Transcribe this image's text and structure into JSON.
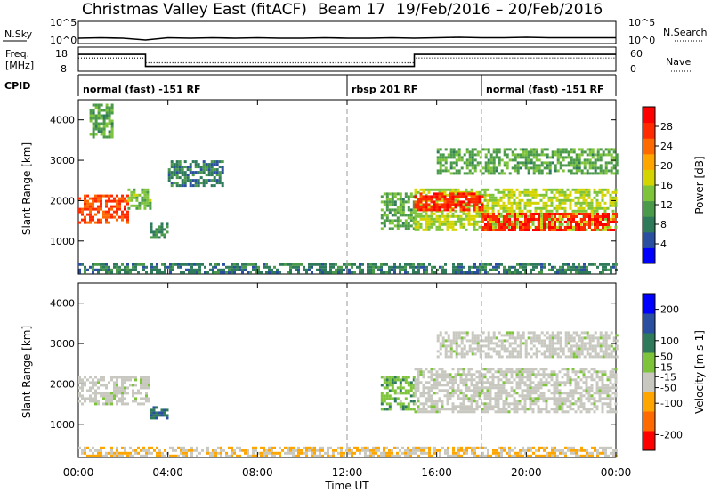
{
  "header": {
    "title": "Christmas Valley East (fitACF)",
    "beam": "Beam 17",
    "dates": "19/Feb/2016 – 20/Feb/2016"
  },
  "strip_labels": {
    "nsky": "N.Sky",
    "nsky_ticks": [
      "10^5",
      "10^0"
    ],
    "nsearch": "N.Search",
    "nsearch_ticks": [
      "10^5",
      "10^0"
    ],
    "freq": "Freq.",
    "freq_unit": "[MHz]",
    "freq_ticks": [
      "18",
      "8"
    ],
    "nave": "Nave",
    "nave_ticks": [
      "60",
      "0"
    ],
    "cpid": "CPID"
  },
  "cpid_segments": [
    {
      "label": "normal (fast) -151 RF",
      "start_h": 0,
      "end_h": 12
    },
    {
      "label": "rbsp 201 RF",
      "start_h": 12,
      "end_h": 18
    },
    {
      "label": "normal (fast) -151 RF",
      "start_h": 18,
      "end_h": 24
    }
  ],
  "x_axis": {
    "label": "Time UT",
    "ticks": [
      "00:00",
      "04:00",
      "08:00",
      "12:00",
      "16:00",
      "20:00",
      "00:00"
    ],
    "tick_hours": [
      0,
      4,
      8,
      12,
      16,
      20,
      24
    ]
  },
  "colors": {
    "power_scale": [
      "#0000ff",
      "#2a4fa0",
      "#2f7a5a",
      "#4a9a4a",
      "#7ec43a",
      "#d4d400",
      "#ffa500",
      "#ff6a00",
      "#ff2a00",
      "#ff0000"
    ],
    "velocity_scale": [
      "#ff0000",
      "#ff6a00",
      "#ffa500",
      "#c8c8c0",
      "#7ec43a",
      "#2f7a5a",
      "#2a4fa0",
      "#0000ff"
    ],
    "ground_scatter": "#c8c8c0"
  },
  "chart_data": [
    {
      "type": "line",
      "title": "N.Sky / N.Search",
      "x_unit": "hours UT",
      "ylim_log": [
        0,
        5
      ],
      "series": [
        {
          "name": "N.Sky",
          "x": [
            0,
            1,
            2,
            3,
            4,
            5,
            6,
            7,
            8,
            9,
            10,
            11,
            12,
            13,
            14,
            15,
            16,
            17,
            18,
            19,
            20,
            21,
            22,
            23,
            24
          ],
          "values": [
            1.2,
            1.3,
            1.2,
            0.8,
            1.3,
            1.2,
            1.3,
            1.2,
            1.3,
            1.2,
            1.2,
            1.3,
            1.2,
            1.2,
            1.3,
            1.2,
            1.3,
            1.4,
            1.3,
            1.3,
            1.4,
            1.3,
            1.3,
            1.3,
            1.3
          ]
        }
      ]
    },
    {
      "type": "line",
      "title": "Freq. / Nave",
      "ylim": [
        8,
        18
      ],
      "series": [
        {
          "name": "Freq.",
          "x": [
            0,
            3,
            3,
            15,
            15,
            24
          ],
          "values": [
            15,
            15,
            10,
            10,
            15,
            15
          ]
        },
        {
          "name": "Nave",
          "x": [
            0,
            3,
            3,
            15,
            15,
            24
          ],
          "values": [
            13.5,
            13.5,
            11.5,
            11.5,
            13.5,
            13.5
          ]
        }
      ]
    },
    {
      "type": "heatmap",
      "title": "Power",
      "xlabel": "Time UT",
      "ylabel": "Slant Range [km]",
      "xlim": [
        0,
        24
      ],
      "ylim": [
        180,
        4500
      ],
      "yticks": [
        1000,
        2000,
        3000,
        4000
      ],
      "colorbar": {
        "label": "Power [dB]",
        "ticks": [
          4,
          8,
          12,
          16,
          20,
          24,
          28
        ],
        "range": [
          0,
          32
        ]
      },
      "regions": [
        {
          "t0": 0.0,
          "t1": 2.2,
          "r0": 1450,
          "r1": 2150,
          "value": 26
        },
        {
          "t0": 2.2,
          "t1": 3.2,
          "r0": 1800,
          "r1": 2300,
          "value": 14
        },
        {
          "t0": 3.2,
          "t1": 4.0,
          "r0": 1100,
          "r1": 1450,
          "value": 10
        },
        {
          "t0": 4.0,
          "t1": 6.5,
          "r0": 2400,
          "r1": 3000,
          "value": 8
        },
        {
          "t0": 0.5,
          "t1": 1.5,
          "r0": 3600,
          "r1": 4400,
          "value": 12
        },
        {
          "t0": 0.0,
          "t1": 24.0,
          "r0": 200,
          "r1": 450,
          "value": 8
        },
        {
          "t0": 13.5,
          "t1": 15.0,
          "r0": 1300,
          "r1": 2200,
          "value": 12
        },
        {
          "t0": 15.0,
          "t1": 24.0,
          "r0": 1250,
          "r1": 2300,
          "value": 16
        },
        {
          "t0": 15.0,
          "t1": 18.0,
          "r0": 1750,
          "r1": 2200,
          "value": 28
        },
        {
          "t0": 18.0,
          "t1": 24.0,
          "r0": 1300,
          "r1": 1700,
          "value": 28
        },
        {
          "t0": 16.0,
          "t1": 24.0,
          "r0": 2700,
          "r1": 3300,
          "value": 12
        }
      ]
    },
    {
      "type": "heatmap",
      "title": "Velocity",
      "xlabel": "Time UT",
      "ylabel": "Slant Range [km]",
      "xlim": [
        0,
        24
      ],
      "ylim": [
        180,
        4500
      ],
      "yticks": [
        1000,
        2000,
        3000,
        4000
      ],
      "colorbar": {
        "label": "Velocity [m s-1]",
        "ticks": [
          -200,
          -100,
          -50,
          -15,
          15,
          50,
          100,
          200
        ],
        "range": [
          -250,
          250
        ]
      },
      "regions": [
        {
          "t0": 0.0,
          "t1": 3.2,
          "r0": 1500,
          "r1": 2200,
          "value": 0
        },
        {
          "t0": 3.2,
          "t1": 4.0,
          "r0": 1150,
          "r1": 1450,
          "value": 120
        },
        {
          "t0": 13.5,
          "t1": 15.0,
          "r0": 1400,
          "r1": 2200,
          "value": 40
        },
        {
          "t0": 15.0,
          "t1": 24.0,
          "r0": 1300,
          "r1": 2400,
          "value": 0
        },
        {
          "t0": 16.0,
          "t1": 24.0,
          "r0": 2700,
          "r1": 3300,
          "value": 0
        },
        {
          "t0": 0.0,
          "t1": 24.0,
          "r0": 200,
          "r1": 450,
          "value": -60
        }
      ]
    }
  ]
}
